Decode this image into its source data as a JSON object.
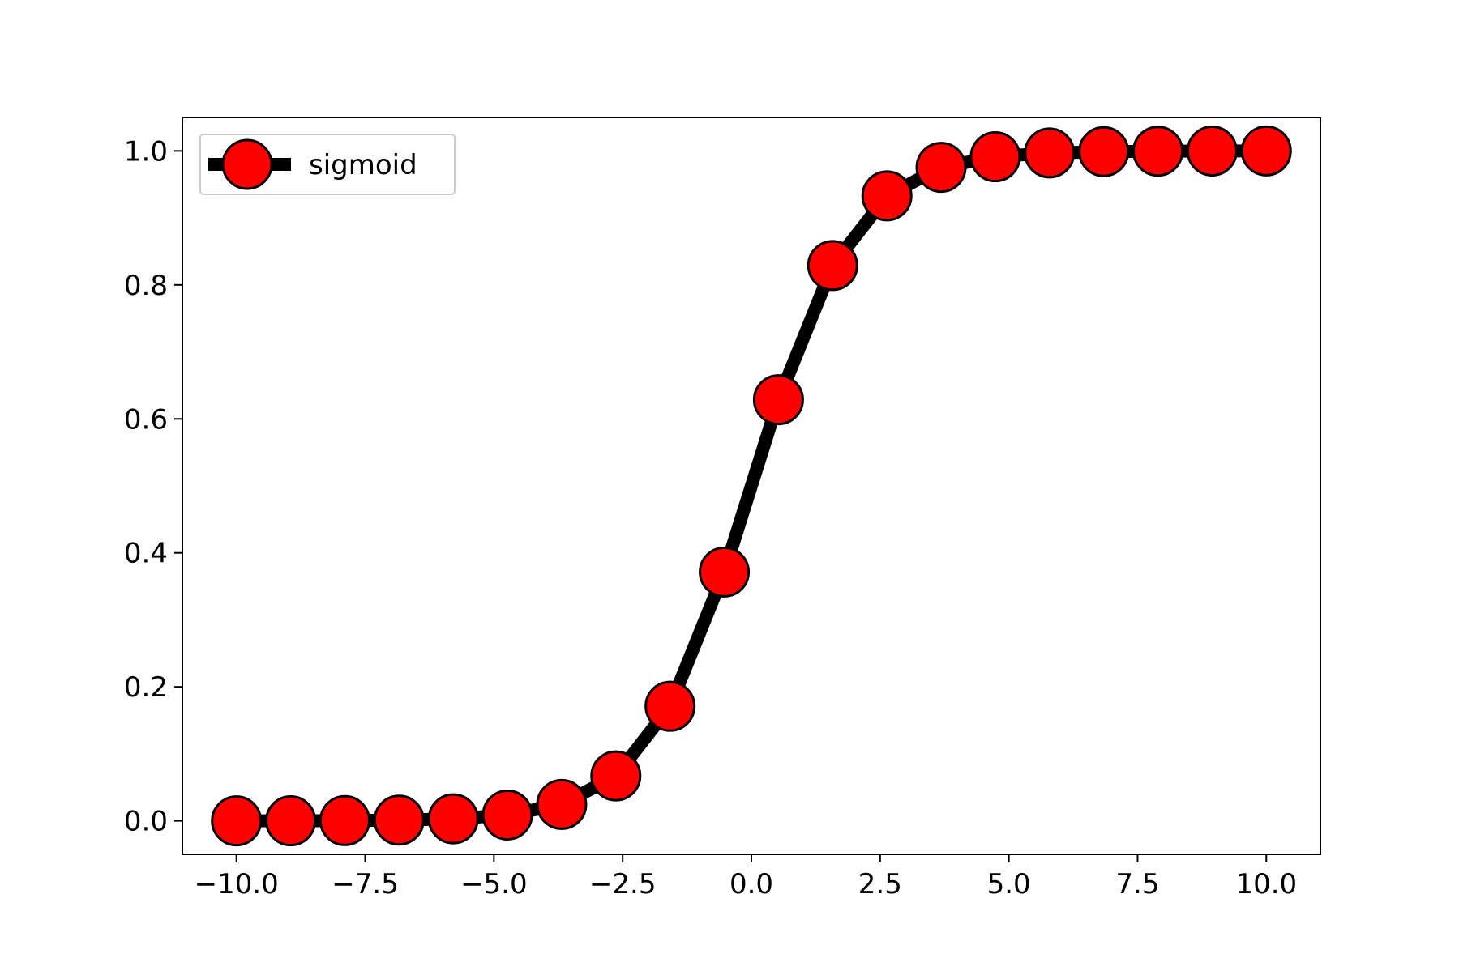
{
  "chart_data": {
    "type": "line",
    "title": "",
    "xlabel": "",
    "ylabel": "",
    "xlim": [
      -11.05,
      11.05
    ],
    "ylim": [
      -0.05,
      1.05
    ],
    "x_ticks": [
      -10.0,
      -7.5,
      -5.0,
      -2.5,
      0.0,
      2.5,
      5.0,
      7.5,
      10.0
    ],
    "x_tick_labels": [
      "−10.0",
      "−7.5",
      "−5.0",
      "−2.5",
      "0.0",
      "2.5",
      "5.0",
      "7.5",
      "10.0"
    ],
    "y_ticks": [
      0.0,
      0.2,
      0.4,
      0.6,
      0.8,
      1.0
    ],
    "y_tick_labels": [
      "0.0",
      "0.2",
      "0.4",
      "0.6",
      "0.8",
      "1.0"
    ],
    "grid": false,
    "legend": {
      "position": "upper-left",
      "entries": [
        "sigmoid"
      ]
    },
    "series": [
      {
        "name": "sigmoid",
        "line_color": "#000000",
        "marker": "circle",
        "marker_color": "#ff0000",
        "marker_edge_color": "#000000",
        "x": [
          -10.0,
          -8.947,
          -7.895,
          -6.842,
          -5.789,
          -4.737,
          -3.684,
          -2.632,
          -1.579,
          -0.526,
          0.526,
          1.579,
          2.632,
          3.684,
          4.737,
          5.789,
          6.842,
          7.895,
          8.947,
          10.0
        ],
        "y": [
          0.0,
          0.0001,
          0.0004,
          0.0011,
          0.003,
          0.0087,
          0.0245,
          0.0671,
          0.171,
          0.3714,
          0.6286,
          0.829,
          0.9329,
          0.9755,
          0.9913,
          0.997,
          0.9989,
          0.9996,
          0.9999,
          1.0
        ]
      }
    ]
  }
}
